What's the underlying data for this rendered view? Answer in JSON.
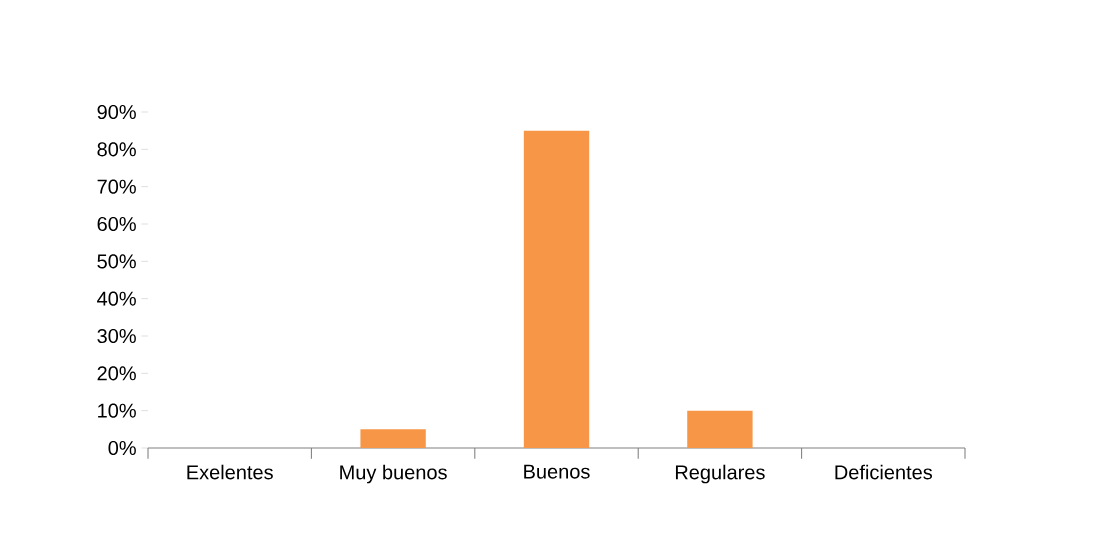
{
  "chart_data": {
    "type": "bar",
    "categories": [
      "Exelentes",
      "Muy buenos",
      "Buenos",
      "Regulares",
      "Deficientes"
    ],
    "values": [
      0,
      5,
      85,
      10,
      0
    ],
    "color": "#f79646",
    "ylim": [
      0,
      90
    ],
    "yticks": [
      {
        "value": 0,
        "label": "0%"
      },
      {
        "value": 10,
        "label": "10%"
      },
      {
        "value": 20,
        "label": "20%"
      },
      {
        "value": 30,
        "label": "30%"
      },
      {
        "value": 40,
        "label": "40%"
      },
      {
        "value": 50,
        "label": "50%"
      },
      {
        "value": 60,
        "label": "60%"
      },
      {
        "value": 70,
        "label": "70%"
      },
      {
        "value": 80,
        "label": "80%"
      },
      {
        "value": 90,
        "label": "90%"
      }
    ],
    "grid": false
  }
}
